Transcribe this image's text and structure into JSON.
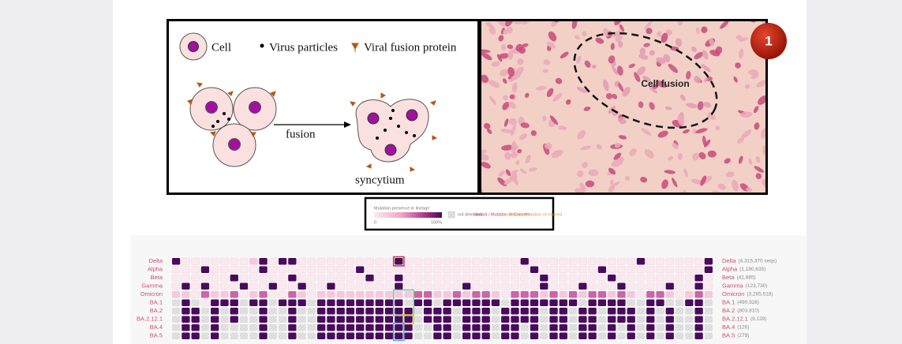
{
  "diagram": {
    "legend": {
      "cell": "Cell",
      "virus": "Virus particles",
      "protein": "Viral fusion protein"
    },
    "arrow_label": "fusion",
    "result_label": "syncytium"
  },
  "micrograph": {
    "label": "Cell fusion",
    "badge": "1"
  },
  "legend": {
    "title": "Mutation presence in lineage",
    "min": "0",
    "max": "100%",
    "not_detected": "not detected",
    "concern": "Variant / Mutation of Concern",
    "interest": "Variant / Mutation of Interest"
  },
  "heatmap": {
    "rows": [
      {
        "label": "Delta",
        "note": "(4,315,370 seqs)",
        "values": [
          100,
          0,
          0,
          0,
          0,
          0,
          0,
          0,
          20,
          100,
          0,
          100,
          100,
          0,
          0,
          0,
          0,
          0,
          0,
          0,
          0,
          0,
          0,
          100,
          0,
          0,
          0,
          0,
          0,
          0,
          0,
          0,
          0,
          0,
          0,
          0,
          100,
          0,
          0,
          0,
          0,
          0,
          0,
          0,
          0,
          0,
          0,
          0,
          100,
          0,
          0,
          0,
          0,
          0,
          0,
          100
        ]
      },
      {
        "label": "Alpha",
        "note": "(1,180,635)",
        "values": [
          0,
          0,
          0,
          100,
          0,
          0,
          0,
          0,
          0,
          100,
          0,
          0,
          0,
          0,
          0,
          0,
          0,
          0,
          0,
          100,
          0,
          0,
          0,
          0,
          0,
          0,
          0,
          0,
          0,
          0,
          0,
          0,
          0,
          0,
          0,
          0,
          0,
          100,
          0,
          0,
          0,
          0,
          0,
          0,
          100,
          0,
          0,
          0,
          0,
          0,
          0,
          0,
          0,
          0,
          0,
          100
        ]
      },
      {
        "label": "Beta",
        "note": "(41,985)",
        "values": [
          0,
          0,
          0,
          0,
          0,
          0,
          100,
          0,
          0,
          0,
          0,
          0,
          100,
          0,
          0,
          0,
          0,
          0,
          0,
          0,
          100,
          0,
          0,
          100,
          0,
          0,
          0,
          0,
          0,
          0,
          0,
          0,
          0,
          0,
          0,
          0,
          0,
          0,
          100,
          0,
          0,
          0,
          0,
          0,
          0,
          100,
          0,
          0,
          0,
          0,
          0,
          0,
          0,
          0,
          100,
          0
        ]
      },
      {
        "label": "Gamma",
        "note": "(123,730)",
        "values": [
          0,
          100,
          0,
          100,
          0,
          0,
          0,
          100,
          0,
          0,
          100,
          0,
          0,
          100,
          0,
          0,
          100,
          0,
          0,
          0,
          0,
          0,
          0,
          100,
          0,
          0,
          0,
          0,
          0,
          0,
          100,
          0,
          0,
          0,
          0,
          0,
          0,
          0,
          100,
          0,
          0,
          0,
          100,
          0,
          0,
          0,
          100,
          0,
          0,
          0,
          0,
          100,
          0,
          0,
          100,
          0
        ]
      },
      {
        "label": "Omicron",
        "note": "(3,265,518)",
        "values": [
          20,
          20,
          0,
          60,
          20,
          20,
          60,
          0,
          20,
          60,
          0,
          0,
          60,
          20,
          0,
          20,
          20,
          20,
          20,
          20,
          20,
          20,
          20,
          20,
          20,
          60,
          60,
          20,
          20,
          60,
          20,
          60,
          60,
          20,
          0,
          60,
          60,
          60,
          20,
          60,
          20,
          60,
          20,
          60,
          60,
          20,
          60,
          20,
          0,
          60,
          60,
          20,
          0,
          20,
          60,
          20
        ]
      },
      {
        "label": "BA.1",
        "note": "(490,928)",
        "values": [
          null,
          100,
          null,
          0,
          100,
          100,
          100,
          null,
          100,
          100,
          null,
          100,
          100,
          100,
          null,
          100,
          100,
          100,
          100,
          100,
          100,
          100,
          100,
          100,
          null,
          100,
          100,
          null,
          100,
          100,
          100,
          100,
          100,
          100,
          null,
          100,
          100,
          100,
          100,
          100,
          100,
          100,
          null,
          100,
          100,
          100,
          100,
          null,
          null,
          100,
          100,
          null,
          null,
          100,
          100,
          null
        ]
      },
      {
        "label": "BA.2",
        "note": "(803,810)",
        "values": [
          null,
          100,
          100,
          null,
          100,
          null,
          100,
          null,
          null,
          100,
          null,
          null,
          100,
          null,
          null,
          100,
          100,
          100,
          100,
          100,
          100,
          100,
          100,
          100,
          100,
          null,
          100,
          100,
          100,
          null,
          100,
          100,
          100,
          null,
          100,
          100,
          100,
          100,
          null,
          100,
          100,
          null,
          100,
          100,
          null,
          100,
          100,
          100,
          null,
          100,
          null,
          100,
          null,
          null,
          100,
          null
        ]
      },
      {
        "label": "BA.2.12.1",
        "note": "(9,139)",
        "values": [
          null,
          100,
          100,
          null,
          100,
          null,
          100,
          null,
          null,
          100,
          null,
          null,
          100,
          null,
          null,
          100,
          100,
          100,
          100,
          100,
          100,
          100,
          100,
          100,
          100,
          null,
          100,
          100,
          100,
          null,
          100,
          100,
          100,
          null,
          100,
          100,
          100,
          100,
          null,
          100,
          100,
          null,
          100,
          100,
          null,
          100,
          100,
          100,
          null,
          100,
          null,
          100,
          null,
          null,
          100,
          null
        ]
      },
      {
        "label": "BA.4",
        "note": "(126)",
        "values": [
          null,
          100,
          100,
          null,
          100,
          null,
          null,
          null,
          null,
          100,
          null,
          null,
          100,
          null,
          null,
          100,
          100,
          100,
          100,
          100,
          100,
          100,
          100,
          100,
          100,
          null,
          null,
          100,
          100,
          null,
          100,
          100,
          100,
          null,
          100,
          100,
          null,
          100,
          null,
          100,
          100,
          null,
          100,
          100,
          null,
          100,
          null,
          100,
          null,
          100,
          null,
          100,
          null,
          null,
          100,
          null
        ]
      },
      {
        "label": "BA.5",
        "note": "(279)",
        "values": [
          null,
          100,
          100,
          null,
          100,
          null,
          null,
          null,
          null,
          100,
          null,
          null,
          100,
          null,
          null,
          100,
          100,
          100,
          100,
          100,
          100,
          100,
          100,
          100,
          100,
          null,
          null,
          100,
          100,
          null,
          100,
          100,
          100,
          null,
          100,
          100,
          null,
          100,
          null,
          100,
          100,
          null,
          100,
          100,
          null,
          100,
          null,
          100,
          null,
          100,
          null,
          100,
          null,
          null,
          100,
          null
        ]
      }
    ]
  }
}
